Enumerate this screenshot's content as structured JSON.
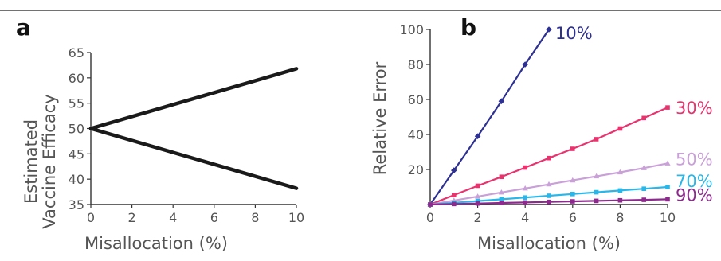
{
  "chart_data": [
    {
      "panel": "a",
      "type": "line",
      "xlabel": "Misallocation (%)",
      "ylabel": "Estimated Vaccine Efficacy",
      "xlim": [
        0,
        10
      ],
      "ylim": [
        35,
        65
      ],
      "xticks": [
        "0",
        "2",
        "4",
        "6",
        "8",
        "10"
      ],
      "yticks": [
        "35",
        "40",
        "45",
        "50",
        "55",
        "60",
        "65"
      ],
      "grid": false,
      "color": "#1a1a1a",
      "series": [
        {
          "x": [
            0,
            10
          ],
          "y": [
            50,
            61.8
          ]
        },
        {
          "x": [
            0,
            10
          ],
          "y": [
            50,
            38.2
          ]
        }
      ]
    },
    {
      "panel": "b",
      "type": "line",
      "xlabel": "Misallocation (%)",
      "ylabel": "Relative Error",
      "xlim": [
        0,
        10
      ],
      "ylim": [
        0,
        100
      ],
      "xticks": [
        "0",
        "2",
        "4",
        "6",
        "8",
        "10"
      ],
      "yticks": [
        "20",
        "40",
        "60",
        "80",
        "100"
      ],
      "grid": false,
      "series": [
        {
          "name": "10%",
          "color": "#2e3192",
          "marker": "diamond",
          "x": [
            0,
            1,
            2,
            3,
            4,
            5
          ],
          "y": [
            0,
            19.5,
            39,
            59,
            80,
            100
          ]
        },
        {
          "name": "30%",
          "color": "#e8336f",
          "marker": "square",
          "x": [
            0,
            1,
            2,
            3,
            4,
            5,
            6,
            7,
            8,
            9,
            10
          ],
          "y": [
            0,
            5.4,
            10.7,
            15.8,
            21.1,
            26.5,
            31.8,
            37.3,
            43.4,
            49.4,
            55.4
          ]
        },
        {
          "name": "50%",
          "color": "#c9a0d8",
          "marker": "triangle",
          "x": [
            0,
            1,
            2,
            3,
            4,
            5,
            6,
            7,
            8,
            9,
            10
          ],
          "y": [
            0,
            2.3,
            4.6,
            6.9,
            9.2,
            11.5,
            13.8,
            16.1,
            18.4,
            20.8,
            23.5
          ]
        },
        {
          "name": "70%",
          "color": "#29b6e8",
          "marker": "square",
          "x": [
            0,
            1,
            2,
            3,
            4,
            5,
            6,
            7,
            8,
            9,
            10
          ],
          "y": [
            0,
            1.0,
            2.0,
            3.0,
            4.0,
            5.0,
            6.0,
            7.0,
            8.0,
            9.0,
            10.0
          ]
        },
        {
          "name": "90%",
          "color": "#8e2a8e",
          "marker": "square",
          "x": [
            0,
            1,
            2,
            3,
            4,
            5,
            6,
            7,
            8,
            9,
            10
          ],
          "y": [
            0,
            0.3,
            0.6,
            0.9,
            1.2,
            1.5,
            1.8,
            2.1,
            2.4,
            2.7,
            3.0
          ]
        }
      ]
    }
  ]
}
